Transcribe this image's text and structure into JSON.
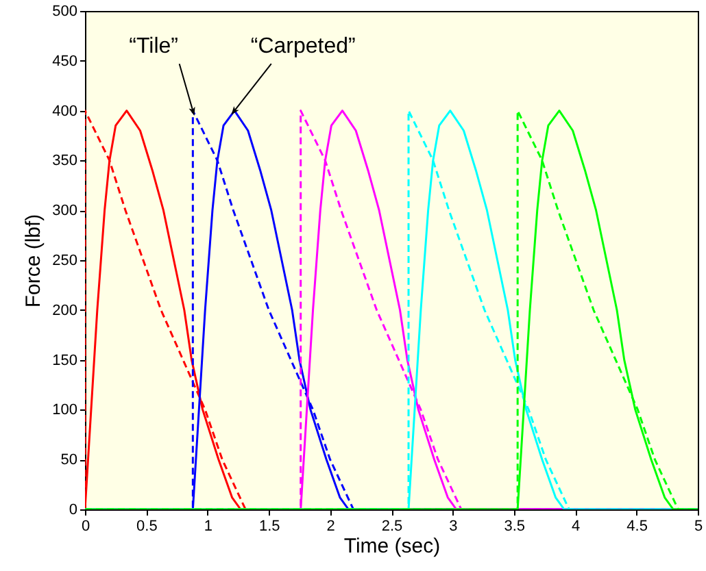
{
  "chart_data": {
    "type": "line",
    "xlabel": "Time (sec)",
    "ylabel": "Force (lbf)",
    "xlim": [
      0,
      5
    ],
    "xticks": [
      0,
      0.5,
      1,
      1.5,
      2,
      2.5,
      3,
      3.5,
      4,
      4.5,
      5
    ],
    "ylim": [
      0,
      500
    ],
    "yticks": [
      0,
      50,
      100,
      150,
      200,
      250,
      300,
      350,
      400,
      450,
      500
    ],
    "grid": false,
    "annotations": [
      {
        "text": "“Tile”",
        "x": 0.88,
        "y": 400
      },
      {
        "text": "“Carpeted”",
        "x": 1.22,
        "y": 400
      }
    ],
    "series": [
      {
        "color": "#ff0000",
        "line_style": "solid",
        "x": [
          0,
          0.05,
          0.1,
          0.16,
          0.2,
          0.25,
          0.34,
          0.45,
          0.55,
          0.64,
          0.81,
          0.87,
          0.96,
          1.09,
          1.2,
          1.27,
          5
        ],
        "values": [
          0,
          100,
          200,
          300,
          350,
          385,
          400,
          380,
          340,
          300,
          200,
          150,
          100,
          50,
          12,
          0,
          0
        ]
      },
      {
        "color": "#ff0000",
        "line_style": "dashed",
        "x": [
          0,
          0,
          0.2,
          0.33,
          0.62,
          0.98,
          1.12,
          1.31,
          5
        ],
        "values": [
          0,
          400,
          350,
          300,
          200,
          100,
          50,
          0,
          0
        ]
      },
      {
        "color": "#0000ff",
        "line_style": "solid",
        "x": [
          0,
          0.88,
          0.93,
          0.98,
          1.04,
          1.08,
          1.13,
          1.22,
          1.33,
          1.43,
          1.52,
          1.69,
          1.75,
          1.84,
          1.97,
          2.08,
          2.15,
          5
        ],
        "values": [
          0,
          0,
          100,
          200,
          300,
          350,
          385,
          400,
          380,
          340,
          300,
          200,
          150,
          100,
          50,
          12,
          0,
          0
        ]
      },
      {
        "color": "#0000ff",
        "line_style": "dashed",
        "x": [
          0,
          0.88,
          0.88,
          1.08,
          1.21,
          1.5,
          1.86,
          2.0,
          2.19,
          5
        ],
        "values": [
          0,
          0,
          400,
          350,
          300,
          200,
          100,
          50,
          0,
          0
        ]
      },
      {
        "color": "#ff00ff",
        "line_style": "solid",
        "x": [
          0,
          1.76,
          1.81,
          1.86,
          1.92,
          1.96,
          2.01,
          2.1,
          2.21,
          2.31,
          2.4,
          2.57,
          2.63,
          2.72,
          2.85,
          2.96,
          3.03,
          5
        ],
        "values": [
          0,
          0,
          100,
          200,
          300,
          350,
          385,
          400,
          380,
          340,
          300,
          200,
          150,
          100,
          50,
          12,
          0,
          0
        ]
      },
      {
        "color": "#ff00ff",
        "line_style": "dashed",
        "x": [
          0,
          1.76,
          1.76,
          1.96,
          2.09,
          2.38,
          2.74,
          2.88,
          3.07,
          5
        ],
        "values": [
          0,
          0,
          400,
          350,
          300,
          200,
          100,
          50,
          0,
          0
        ]
      },
      {
        "color": "#00ffff",
        "line_style": "solid",
        "x": [
          0,
          2.64,
          2.69,
          2.74,
          2.8,
          2.84,
          2.89,
          2.98,
          3.09,
          3.19,
          3.28,
          3.45,
          3.51,
          3.6,
          3.73,
          3.84,
          3.91,
          5
        ],
        "values": [
          0,
          0,
          100,
          200,
          300,
          350,
          385,
          400,
          380,
          340,
          300,
          200,
          150,
          100,
          50,
          12,
          0,
          0
        ]
      },
      {
        "color": "#00ffff",
        "line_style": "dashed",
        "x": [
          0,
          2.64,
          2.64,
          2.84,
          2.97,
          3.26,
          3.62,
          3.76,
          3.95,
          5
        ],
        "values": [
          0,
          0,
          400,
          350,
          300,
          200,
          100,
          50,
          0,
          0
        ]
      },
      {
        "color": "#00ff00",
        "line_style": "solid",
        "x": [
          0,
          3.53,
          3.58,
          3.63,
          3.69,
          3.73,
          3.78,
          3.87,
          3.98,
          4.08,
          4.17,
          4.34,
          4.4,
          4.49,
          4.62,
          4.73,
          4.8,
          5
        ],
        "values": [
          0,
          0,
          100,
          200,
          300,
          350,
          385,
          400,
          380,
          340,
          300,
          200,
          150,
          100,
          50,
          12,
          0,
          0
        ]
      },
      {
        "color": "#00ff00",
        "line_style": "dashed",
        "x": [
          0,
          3.53,
          3.53,
          3.73,
          3.86,
          4.15,
          4.51,
          4.65,
          4.84,
          5
        ],
        "values": [
          0,
          0,
          400,
          350,
          300,
          200,
          100,
          50,
          0,
          0
        ]
      }
    ]
  }
}
